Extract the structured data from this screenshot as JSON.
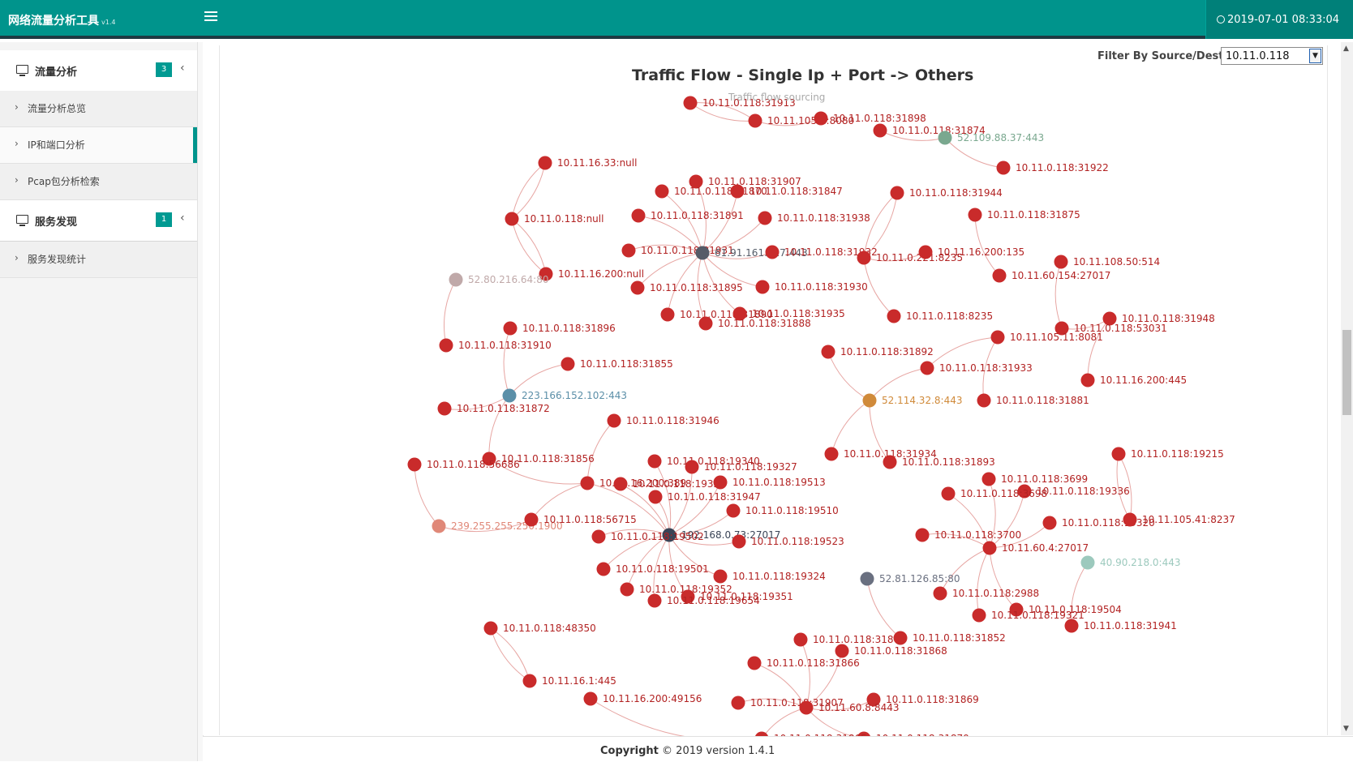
{
  "header": {
    "app_title": "网络流量分析工具",
    "version": "v1.4",
    "datetime": "2019-07-01 08:33:04",
    "menu_icon": "hamburger-icon",
    "clock_icon": "clock-icon"
  },
  "sidebar": {
    "groups": [
      {
        "label": "流量分析",
        "badge": "3",
        "icon": "monitor-icon"
      },
      {
        "label": "服务发现",
        "badge": "1",
        "icon": "monitor-icon"
      }
    ],
    "items": [
      {
        "label": "流量分析总览"
      },
      {
        "label": "IP和端口分析"
      },
      {
        "label": "Pcap包分析检索"
      },
      {
        "label": "服务发现统计"
      }
    ]
  },
  "filter": {
    "label": "Filter By Source/Dest IP",
    "value": "10.11.0.118"
  },
  "chart": {
    "title": "Traffic Flow - Single Ip + Port -> Others",
    "subtitle": "Traffic flow sourcing"
  },
  "colors": {
    "header": "#00948c",
    "node_default": "#c92b2b",
    "edge": "#e7a6a3",
    "label": "#b22222"
  },
  "footer": {
    "copyright_label": "Copyright",
    "copyright_text": "© 2019 version 1.4.1"
  },
  "chart_data": {
    "type": "network",
    "nodes": [
      {
        "id": "10.11.0.118:31913"
      },
      {
        "id": "10.11.105.1:8080"
      },
      {
        "id": "10.11.0.118:31898"
      },
      {
        "id": "10.11.0.118:31874"
      },
      {
        "id": "52.109.88.37:443",
        "color": "#7aa88f"
      },
      {
        "id": "10.11.0.118:31922"
      },
      {
        "id": "10.11.16.33:null"
      },
      {
        "id": "10.11.0.118:null"
      },
      {
        "id": "10.11.16.200:null"
      },
      {
        "id": "52.80.216.64:80",
        "color": "#c0a9a9"
      },
      {
        "id": "10.11.0.118:31907"
      },
      {
        "id": "10.11.0.118:31870"
      },
      {
        "id": "10.11.0.118:31847"
      },
      {
        "id": "10.11.0.118:31891"
      },
      {
        "id": "10.11.0.118:31938"
      },
      {
        "id": "10.11.0.118:31931"
      },
      {
        "id": "61.91.161.217:443",
        "color": "#555c68"
      },
      {
        "id": "10.11.0.118:31932"
      },
      {
        "id": "10.11.0.118:31895"
      },
      {
        "id": "10.11.0.118:31930"
      },
      {
        "id": "10.11.0.118:31890"
      },
      {
        "id": "10.11.0.118:31935"
      },
      {
        "id": "10.11.0.118:31888"
      },
      {
        "id": "10.11.0.118:31944"
      },
      {
        "id": "10.11.0.221:8235"
      },
      {
        "id": "10.11.16.200:135"
      },
      {
        "id": "10.11.0.118:31875"
      },
      {
        "id": "10.11.0.118:8235"
      },
      {
        "id": "10.11.108.50:514"
      },
      {
        "id": "10.11.60.154:27017"
      },
      {
        "id": "10.11.0.118:31948"
      },
      {
        "id": "10.11.0.118:53031"
      },
      {
        "id": "10.11.105.11:8081"
      },
      {
        "id": "10.11.16.200:445"
      },
      {
        "id": "10.11.0.118:31896"
      },
      {
        "id": "10.11.0.118:31910"
      },
      {
        "id": "10.11.0.118:31855"
      },
      {
        "id": "223.166.152.102:443",
        "color": "#5b8fa8"
      },
      {
        "id": "10.11.0.118:31872"
      },
      {
        "id": "10.11.0.118:31892"
      },
      {
        "id": "10.11.0.118:31933"
      },
      {
        "id": "52.114.32.8:443",
        "color": "#d08a3a"
      },
      {
        "id": "10.11.0.118:31881"
      },
      {
        "id": "10.11.0.118:31934"
      },
      {
        "id": "10.11.0.118:31893"
      },
      {
        "id": "10.11.0.118:31946"
      },
      {
        "id": "10.11.0.118:31856"
      },
      {
        "id": "10.11.0.118:56686"
      },
      {
        "id": "239.255.255.250:1900",
        "color": "#e08878"
      },
      {
        "id": "10.11.0.118:56715"
      },
      {
        "id": "10.11.16.200:389"
      },
      {
        "id": "10.11.0.118:19340"
      },
      {
        "id": "10.11.0.118:19327"
      },
      {
        "id": "10.11.0.118:19320"
      },
      {
        "id": "10.11.0.118:19513"
      },
      {
        "id": "10.11.0.118:31947"
      },
      {
        "id": "10.11.0.118:19510"
      },
      {
        "id": "192.168.0.73:27017",
        "color": "#3a4456"
      },
      {
        "id": "10.11.0.118:19502"
      },
      {
        "id": "10.11.0.118:19523"
      },
      {
        "id": "10.11.0.118:19501"
      },
      {
        "id": "10.11.0.118:19324"
      },
      {
        "id": "10.11.0.118:19352"
      },
      {
        "id": "10.11.0.118:19351"
      },
      {
        "id": "10.11.0.118:19654"
      },
      {
        "id": "52.81.126.85:80",
        "color": "#6a7080"
      },
      {
        "id": "10.11.0.118:19215"
      },
      {
        "id": "10.11.0.118:3699"
      },
      {
        "id": "10.11.0.118:19336"
      },
      {
        "id": "10.11.0.118:3698"
      },
      {
        "id": "10.11.0.118:19320b"
      },
      {
        "id": "10.11.105.41:8237"
      },
      {
        "id": "10.11.0.118:3700"
      },
      {
        "id": "10.11.60.4:27017"
      },
      {
        "id": "40.90.218.0:443",
        "color": "#9cc9bd"
      },
      {
        "id": "10.11.0.118:2988"
      },
      {
        "id": "10.11.0.118:19504"
      },
      {
        "id": "10.11.0.118:19321"
      },
      {
        "id": "10.11.0.118:31941"
      },
      {
        "id": "10.11.0.118:48350"
      },
      {
        "id": "10.11.16.1:445"
      },
      {
        "id": "10.11.0.118:31867"
      },
      {
        "id": "10.11.0.118:31852"
      },
      {
        "id": "10.11.0.118:31868"
      },
      {
        "id": "10.11.0.118:31866"
      },
      {
        "id": "10.11.16.200:49156"
      },
      {
        "id": "10.11.0.118:31869"
      },
      {
        "id": "10.11.0.118:31907b"
      },
      {
        "id": "10.11.60.8:8443"
      },
      {
        "id": "10.11.0.118:31870b"
      },
      {
        "id": "10.11.0.118:31865"
      }
    ]
  }
}
